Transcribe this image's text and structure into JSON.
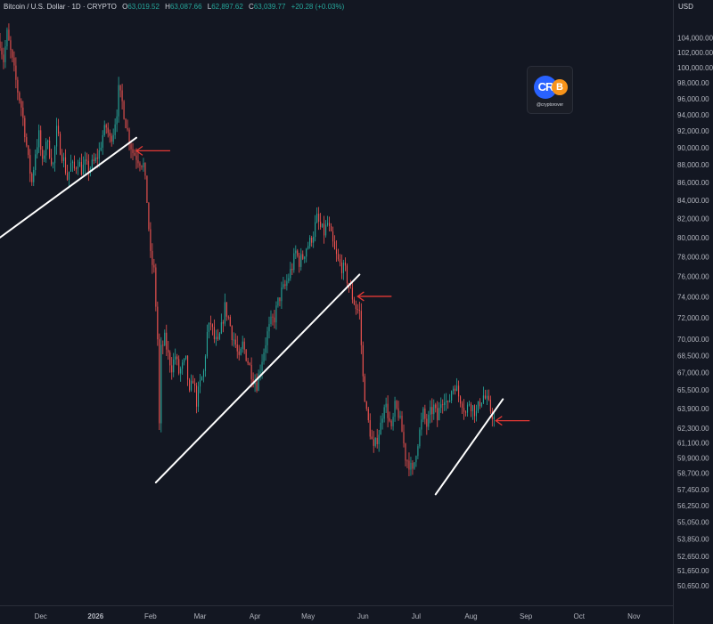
{
  "header": {
    "symbol": "Bitcoin / U.S. Dollar · 1D · CRYPTO",
    "o_label": "O",
    "o_value": "63,019.52",
    "h_label": "H",
    "h_value": "63,087.66",
    "l_label": "L",
    "l_value": "62,897.62",
    "c_label": "C",
    "c_value": "63,039.77",
    "change": "+20.28 (+0.03%)"
  },
  "currency": "USD",
  "logo": {
    "text": "CR",
    "coin": "B",
    "handle": "@cryptorover"
  },
  "colors": {
    "background": "#131722",
    "up": "#26a69a",
    "down": "#ef5350",
    "trendline": "#ffffff",
    "arrow": "#e53935",
    "axis_text": "#b2b5be"
  },
  "chart_data": {
    "type": "candlestick",
    "y_scale": "log",
    "ylim": [
      50000,
      108000
    ],
    "y_ticks": [
      104000,
      102000,
      100000,
      98000,
      96000,
      94000,
      92000,
      90000,
      88000,
      86000,
      84000,
      82000,
      80000,
      78000,
      76000,
      74000,
      72000,
      70000,
      68500,
      67000,
      65500,
      63900,
      62300,
      61100,
      59900,
      58700,
      57450,
      56250,
      55050,
      53850,
      52650,
      51650,
      50650
    ],
    "y_tick_labels": [
      "104,000.00",
      "102,000.00",
      "100,000.00",
      "98,000.00",
      "96,000.00",
      "94,000.00",
      "92,000.00",
      "90,000.00",
      "88,000.00",
      "86,000.00",
      "84,000.00",
      "82,000.00",
      "80,000.00",
      "78,000.00",
      "76,000.00",
      "74,000.00",
      "72,000.00",
      "70,000.00",
      "68,500.00",
      "67,000.00",
      "65,500.00",
      "63,900.00",
      "62,300.00",
      "61,100.00",
      "59,900.00",
      "58,700.00",
      "57,450.00",
      "56,250.00",
      "55,050.00",
      "53,850.00",
      "52,650.00",
      "51,650.00",
      "50,650.00"
    ],
    "x_ticks": [
      {
        "date": "2025-12-01",
        "label": "Dec",
        "bold": false
      },
      {
        "date": "2026-01-01",
        "label": "2026",
        "bold": true
      },
      {
        "date": "2026-02-01",
        "label": "Feb",
        "bold": false
      },
      {
        "date": "2026-03-01",
        "label": "Mar",
        "bold": false
      },
      {
        "date": "2026-04-01",
        "label": "Apr",
        "bold": false
      },
      {
        "date": "2026-05-01",
        "label": "May",
        "bold": false
      },
      {
        "date": "2026-06-01",
        "label": "Jun",
        "bold": false
      },
      {
        "date": "2026-07-01",
        "label": "Jul",
        "bold": false
      },
      {
        "date": "2026-08-01",
        "label": "Aug",
        "bold": false
      },
      {
        "date": "2026-09-01",
        "label": "Sep",
        "bold": false
      },
      {
        "date": "2026-10-01",
        "label": "Oct",
        "bold": false
      },
      {
        "date": "2026-11-01",
        "label": "Nov",
        "bold": false
      }
    ],
    "xlim": [
      "2025-11-08",
      "2026-11-23"
    ],
    "price_path": [
      [
        "2025-11-08",
        103500
      ],
      [
        "2025-11-10",
        101000
      ],
      [
        "2025-11-12",
        104500
      ],
      [
        "2025-11-14",
        102000
      ],
      [
        "2025-11-16",
        99500
      ],
      [
        "2025-11-18",
        97000
      ],
      [
        "2025-11-20",
        95000
      ],
      [
        "2025-11-22",
        92000
      ],
      [
        "2025-11-24",
        88500
      ],
      [
        "2025-11-26",
        86000
      ],
      [
        "2025-11-28",
        89500
      ],
      [
        "2025-11-30",
        91500
      ],
      [
        "2025-12-02",
        88000
      ],
      [
        "2025-12-04",
        91000
      ],
      [
        "2025-12-06",
        89500
      ],
      [
        "2025-12-08",
        88000
      ],
      [
        "2025-12-10",
        92000
      ],
      [
        "2025-12-12",
        90000
      ],
      [
        "2025-12-14",
        88500
      ],
      [
        "2025-12-16",
        86500
      ],
      [
        "2025-12-18",
        88000
      ],
      [
        "2025-12-20",
        87500
      ],
      [
        "2025-12-22",
        88500
      ],
      [
        "2025-12-24",
        87500
      ],
      [
        "2025-12-26",
        88000
      ],
      [
        "2025-12-28",
        87500
      ],
      [
        "2025-12-30",
        88000
      ],
      [
        "2026-01-01",
        88500
      ],
      [
        "2026-01-03",
        89500
      ],
      [
        "2026-01-05",
        91500
      ],
      [
        "2026-01-07",
        92500
      ],
      [
        "2026-01-09",
        91000
      ],
      [
        "2026-01-11",
        92000
      ],
      [
        "2026-01-13",
        94500
      ],
      [
        "2026-01-14",
        97000
      ],
      [
        "2026-01-16",
        95500
      ],
      [
        "2026-01-18",
        93000
      ],
      [
        "2026-01-20",
        91000
      ],
      [
        "2026-01-22",
        89500
      ],
      [
        "2026-01-24",
        89000
      ],
      [
        "2026-01-26",
        88500
      ],
      [
        "2026-01-28",
        88000
      ],
      [
        "2026-01-30",
        84000
      ],
      [
        "2026-02-01",
        78000
      ],
      [
        "2026-02-03",
        76500
      ],
      [
        "2026-02-05",
        70000
      ],
      [
        "2026-02-06",
        62500
      ],
      [
        "2026-02-07",
        69000
      ],
      [
        "2026-02-09",
        70000
      ],
      [
        "2026-02-11",
        68500
      ],
      [
        "2026-02-13",
        67500
      ],
      [
        "2026-02-15",
        68500
      ],
      [
        "2026-02-17",
        67000
      ],
      [
        "2026-02-19",
        67500
      ],
      [
        "2026-02-21",
        68000
      ],
      [
        "2026-02-23",
        65000
      ],
      [
        "2026-02-25",
        66500
      ],
      [
        "2026-02-27",
        64500
      ],
      [
        "2026-03-01",
        66000
      ],
      [
        "2026-03-03",
        67000
      ],
      [
        "2026-03-05",
        70500
      ],
      [
        "2026-03-07",
        71500
      ],
      [
        "2026-03-09",
        70000
      ],
      [
        "2026-03-11",
        69500
      ],
      [
        "2026-03-13",
        71000
      ],
      [
        "2026-03-15",
        73000
      ],
      [
        "2026-03-17",
        72000
      ],
      [
        "2026-03-19",
        70500
      ],
      [
        "2026-03-21",
        69500
      ],
      [
        "2026-03-23",
        68000
      ],
      [
        "2026-03-25",
        69500
      ],
      [
        "2026-03-27",
        68500
      ],
      [
        "2026-03-29",
        67500
      ],
      [
        "2026-03-31",
        66500
      ],
      [
        "2026-04-02",
        66000
      ],
      [
        "2026-04-04",
        67500
      ],
      [
        "2026-04-06",
        69000
      ],
      [
        "2026-04-08",
        70500
      ],
      [
        "2026-04-10",
        71500
      ],
      [
        "2026-04-12",
        72000
      ],
      [
        "2026-04-14",
        73500
      ],
      [
        "2026-04-16",
        74500
      ],
      [
        "2026-04-18",
        75000
      ],
      [
        "2026-04-20",
        76000
      ],
      [
        "2026-04-22",
        77000
      ],
      [
        "2026-04-24",
        78500
      ],
      [
        "2026-04-26",
        77500
      ],
      [
        "2026-04-28",
        78000
      ],
      [
        "2026-04-30",
        79000
      ],
      [
        "2026-05-02",
        79500
      ],
      [
        "2026-05-04",
        80500
      ],
      [
        "2026-05-06",
        82000
      ],
      [
        "2026-05-08",
        81000
      ],
      [
        "2026-05-10",
        80500
      ],
      [
        "2026-05-12",
        81500
      ],
      [
        "2026-05-14",
        80000
      ],
      [
        "2026-05-16",
        78500
      ],
      [
        "2026-05-18",
        77500
      ],
      [
        "2026-05-20",
        77000
      ],
      [
        "2026-05-22",
        76500
      ],
      [
        "2026-05-24",
        75000
      ],
      [
        "2026-05-26",
        74000
      ],
      [
        "2026-05-28",
        73000
      ],
      [
        "2026-05-30",
        72500
      ],
      [
        "2026-06-01",
        66500
      ],
      [
        "2026-06-03",
        63500
      ],
      [
        "2026-06-05",
        62000
      ],
      [
        "2026-06-07",
        60500
      ],
      [
        "2026-06-09",
        61500
      ],
      [
        "2026-06-11",
        62500
      ],
      [
        "2026-06-13",
        64500
      ],
      [
        "2026-06-15",
        63500
      ],
      [
        "2026-06-17",
        62000
      ],
      [
        "2026-06-19",
        64000
      ],
      [
        "2026-06-21",
        63500
      ],
      [
        "2026-06-23",
        62000
      ],
      [
        "2026-06-25",
        60000
      ],
      [
        "2026-06-27",
        59500
      ],
      [
        "2026-06-29",
        58700
      ],
      [
        "2026-07-01",
        60500
      ],
      [
        "2026-07-03",
        62000
      ],
      [
        "2026-07-05",
        63500
      ],
      [
        "2026-07-07",
        62500
      ],
      [
        "2026-07-09",
        63500
      ],
      [
        "2026-07-11",
        64000
      ],
      [
        "2026-07-13",
        63000
      ],
      [
        "2026-07-15",
        64500
      ],
      [
        "2026-07-17",
        65000
      ],
      [
        "2026-07-19",
        64000
      ],
      [
        "2026-07-21",
        65500
      ],
      [
        "2026-07-23",
        66000
      ],
      [
        "2026-07-25",
        65000
      ],
      [
        "2026-07-27",
        64500
      ],
      [
        "2026-07-29",
        63500
      ],
      [
        "2026-07-31",
        64500
      ],
      [
        "2026-08-02",
        64000
      ],
      [
        "2026-08-04",
        63500
      ],
      [
        "2026-08-06",
        64500
      ],
      [
        "2026-08-08",
        65000
      ],
      [
        "2026-08-10",
        64500
      ],
      [
        "2026-08-12",
        63800
      ],
      [
        "2026-08-14",
        63040
      ]
    ],
    "trendlines": [
      {
        "start": [
          "2025-11-08",
          80000
        ],
        "end": [
          "2026-01-24",
          91200
        ]
      },
      {
        "start": [
          "2026-02-04",
          58000
        ],
        "end": [
          "2026-05-30",
          76200
        ]
      },
      {
        "start": [
          "2026-07-12",
          57100
        ],
        "end": [
          "2026-08-19",
          64700
        ]
      }
    ],
    "annotations": [
      {
        "type": "arrow-left",
        "date": "2026-01-24",
        "value": 89650
      },
      {
        "type": "arrow-left",
        "date": "2026-05-29",
        "value": 74050
      },
      {
        "type": "arrow-left",
        "date": "2026-08-15",
        "value": 62900
      }
    ]
  }
}
